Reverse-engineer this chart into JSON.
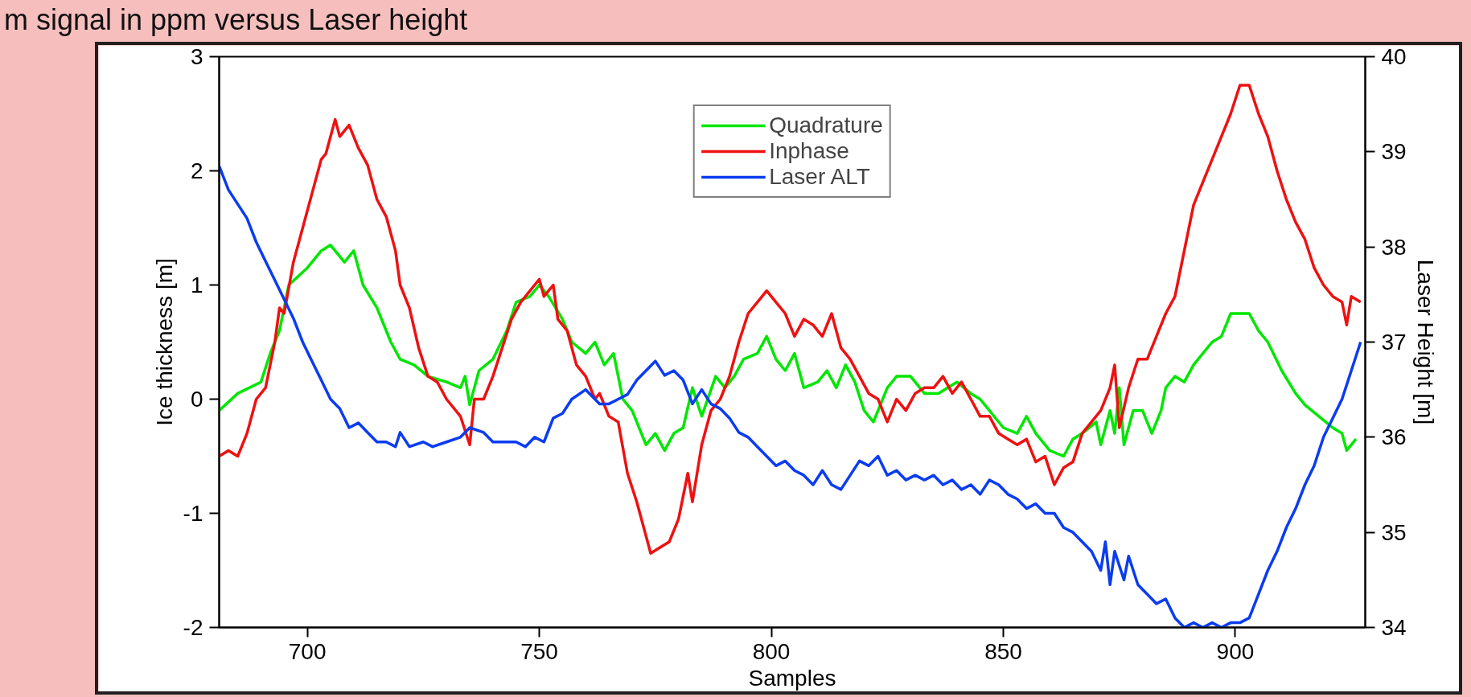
{
  "chart_data": {
    "type": "line",
    "title": "m signal in ppm versus Laser height",
    "xlabel": "Samples",
    "ylabel": "Ice thickness [m]",
    "y2label": "Laser Height [m]",
    "xlim": [
      681,
      928
    ],
    "xticks": [
      700,
      750,
      800,
      850,
      900
    ],
    "ylim": [
      -2,
      3
    ],
    "yticks": [
      -2,
      -1,
      0,
      1,
      2,
      3
    ],
    "y2lim": [
      34,
      40
    ],
    "y2ticks": [
      34,
      35,
      36,
      37,
      38,
      39,
      40
    ],
    "grid": false,
    "legend": "top",
    "line_style": "solid",
    "series": [
      {
        "name": "Quadrature",
        "color": "#00e600",
        "x": [
          681,
          685,
          690,
          692,
          694,
          696,
          700,
          703,
          705,
          708,
          710,
          712,
          715,
          718,
          720,
          723,
          726,
          730,
          733,
          734,
          735,
          737,
          740,
          743,
          745,
          748,
          750,
          752,
          755,
          757,
          760,
          762,
          764,
          766,
          768,
          770,
          773,
          775,
          777,
          779,
          781,
          783,
          785,
          788,
          790,
          792,
          794,
          797,
          799,
          801,
          803,
          805,
          807,
          810,
          812,
          814,
          816,
          818,
          820,
          822,
          825,
          827,
          830,
          833,
          836,
          840,
          843,
          845,
          847,
          850,
          853,
          855,
          857,
          860,
          863,
          865,
          867,
          870,
          871,
          873,
          874,
          875,
          876,
          878,
          880,
          882,
          884,
          885,
          887,
          889,
          891,
          893,
          895,
          897,
          899,
          903,
          905,
          907,
          910,
          913,
          915,
          918,
          921,
          923,
          924,
          926
        ],
        "values": [
          -0.1,
          0.05,
          0.15,
          0.4,
          0.6,
          1.0,
          1.15,
          1.3,
          1.35,
          1.2,
          1.3,
          1.0,
          0.8,
          0.5,
          0.35,
          0.3,
          0.2,
          0.15,
          0.1,
          0.2,
          -0.05,
          0.25,
          0.35,
          0.6,
          0.85,
          0.9,
          1.0,
          0.9,
          0.7,
          0.5,
          0.4,
          0.5,
          0.3,
          0.4,
          0.0,
          -0.1,
          -0.4,
          -0.3,
          -0.45,
          -0.3,
          -0.25,
          0.1,
          -0.15,
          0.2,
          0.1,
          0.2,
          0.35,
          0.4,
          0.55,
          0.35,
          0.25,
          0.4,
          0.1,
          0.15,
          0.25,
          0.1,
          0.3,
          0.15,
          -0.1,
          -0.2,
          0.1,
          0.2,
          0.2,
          0.05,
          0.05,
          0.15,
          0.05,
          0.0,
          -0.1,
          -0.25,
          -0.3,
          -0.15,
          -0.3,
          -0.45,
          -0.5,
          -0.35,
          -0.3,
          -0.2,
          -0.4,
          -0.1,
          -0.3,
          0.1,
          -0.4,
          -0.1,
          -0.1,
          -0.3,
          -0.1,
          0.1,
          0.2,
          0.15,
          0.3,
          0.4,
          0.5,
          0.55,
          0.75,
          0.75,
          0.6,
          0.5,
          0.25,
          0.05,
          -0.05,
          -0.15,
          -0.25,
          -0.3,
          -0.45,
          -0.35
        ]
      },
      {
        "name": "Inphase",
        "color": "#ee1111",
        "x": [
          681,
          683,
          685,
          687,
          689,
          691,
          693,
          694,
          695,
          697,
          699,
          701,
          703,
          704,
          706,
          707,
          709,
          711,
          713,
          715,
          717,
          719,
          720,
          722,
          724,
          726,
          728,
          730,
          733,
          735,
          736,
          738,
          740,
          742,
          744,
          746,
          748,
          750,
          751,
          753,
          754,
          756,
          758,
          760,
          762,
          763,
          765,
          767,
          769,
          771,
          773,
          774,
          776,
          778,
          780,
          782,
          783,
          785,
          787,
          789,
          791,
          793,
          795,
          797,
          799,
          801,
          803,
          805,
          807,
          809,
          811,
          813,
          815,
          817,
          819,
          821,
          823,
          825,
          827,
          829,
          831,
          833,
          835,
          837,
          839,
          841,
          843,
          845,
          847,
          849,
          851,
          853,
          855,
          857,
          859,
          861,
          863,
          865,
          867,
          869,
          871,
          873,
          874,
          875,
          877,
          879,
          881,
          883,
          885,
          887,
          889,
          891,
          893,
          895,
          897,
          899,
          901,
          903,
          905,
          907,
          909,
          911,
          913,
          915,
          917,
          919,
          921,
          923,
          924,
          925,
          927
        ],
        "values": [
          -0.5,
          -0.45,
          -0.5,
          -0.3,
          0.0,
          0.1,
          0.5,
          0.8,
          0.75,
          1.2,
          1.5,
          1.8,
          2.1,
          2.15,
          2.45,
          2.3,
          2.4,
          2.2,
          2.05,
          1.75,
          1.6,
          1.3,
          1.0,
          0.8,
          0.45,
          0.2,
          0.15,
          0.0,
          -0.15,
          -0.4,
          0.0,
          0.0,
          0.2,
          0.45,
          0.7,
          0.85,
          0.95,
          1.05,
          0.9,
          1.0,
          0.7,
          0.6,
          0.3,
          0.2,
          0.0,
          0.05,
          -0.15,
          -0.2,
          -0.65,
          -0.9,
          -1.2,
          -1.35,
          -1.3,
          -1.25,
          -1.05,
          -0.65,
          -0.9,
          -0.4,
          -0.1,
          0.0,
          0.2,
          0.5,
          0.75,
          0.85,
          0.95,
          0.85,
          0.75,
          0.55,
          0.7,
          0.65,
          0.55,
          0.75,
          0.45,
          0.35,
          0.2,
          0.05,
          0.0,
          -0.2,
          0.0,
          -0.1,
          0.05,
          0.1,
          0.1,
          0.2,
          0.05,
          0.15,
          0.0,
          -0.15,
          -0.15,
          -0.3,
          -0.35,
          -0.4,
          -0.35,
          -0.55,
          -0.5,
          -0.75,
          -0.6,
          -0.55,
          -0.3,
          -0.2,
          -0.1,
          0.1,
          0.3,
          -0.25,
          0.1,
          0.35,
          0.35,
          0.55,
          0.75,
          0.9,
          1.3,
          1.7,
          1.9,
          2.1,
          2.3,
          2.5,
          2.75,
          2.75,
          2.5,
          2.3,
          2.0,
          1.75,
          1.55,
          1.4,
          1.15,
          1.0,
          0.9,
          0.85,
          0.65,
          0.9,
          0.85
        ]
      },
      {
        "name": "Laser ALT",
        "color": "#0a3cf0",
        "axis": "y2",
        "x": [
          681,
          683,
          685,
          687,
          689,
          691,
          693,
          695,
          697,
          699,
          701,
          703,
          705,
          707,
          709,
          711,
          713,
          715,
          717,
          719,
          720,
          722,
          725,
          727,
          730,
          733,
          735,
          738,
          740,
          743,
          745,
          747,
          749,
          751,
          753,
          755,
          757,
          760,
          763,
          765,
          767,
          769,
          771,
          773,
          775,
          777,
          779,
          781,
          783,
          785,
          787,
          789,
          791,
          793,
          795,
          797,
          799,
          801,
          803,
          805,
          807,
          809,
          811,
          813,
          815,
          817,
          819,
          821,
          823,
          825,
          827,
          829,
          831,
          833,
          835,
          837,
          839,
          841,
          843,
          845,
          847,
          849,
          851,
          853,
          855,
          857,
          859,
          861,
          863,
          865,
          867,
          869,
          871,
          872,
          873,
          874,
          876,
          877,
          879,
          881,
          883,
          885,
          887,
          889,
          891,
          893,
          895,
          897,
          899,
          901,
          903,
          905,
          907,
          909,
          911,
          913,
          915,
          917,
          919,
          921,
          923,
          925,
          927
        ],
        "values": [
          38.85,
          38.6,
          38.45,
          38.3,
          38.05,
          37.85,
          37.65,
          37.45,
          37.25,
          37.0,
          36.8,
          36.6,
          36.4,
          36.3,
          36.1,
          36.15,
          36.05,
          35.95,
          35.95,
          35.9,
          36.05,
          35.9,
          35.95,
          35.9,
          35.95,
          36.0,
          36.1,
          36.05,
          35.95,
          35.95,
          35.95,
          35.9,
          36.0,
          35.95,
          36.2,
          36.25,
          36.4,
          36.5,
          36.35,
          36.35,
          36.4,
          36.45,
          36.6,
          36.7,
          36.8,
          36.65,
          36.7,
          36.6,
          36.35,
          36.5,
          36.35,
          36.3,
          36.2,
          36.05,
          36.0,
          35.9,
          35.8,
          35.7,
          35.75,
          35.65,
          35.6,
          35.5,
          35.65,
          35.5,
          35.45,
          35.6,
          35.75,
          35.7,
          35.8,
          35.6,
          35.65,
          35.55,
          35.6,
          35.55,
          35.6,
          35.5,
          35.55,
          35.45,
          35.5,
          35.4,
          35.55,
          35.5,
          35.4,
          35.35,
          35.25,
          35.3,
          35.2,
          35.2,
          35.05,
          35.0,
          34.9,
          34.8,
          34.6,
          34.9,
          34.45,
          34.8,
          34.5,
          34.75,
          34.45,
          34.35,
          34.25,
          34.3,
          34.1,
          34.0,
          34.05,
          34.0,
          34.05,
          34.0,
          34.05,
          34.05,
          34.1,
          34.35,
          34.6,
          34.8,
          35.05,
          35.25,
          35.5,
          35.7,
          36.0,
          36.2,
          36.4,
          36.7,
          37.0
        ]
      }
    ]
  }
}
